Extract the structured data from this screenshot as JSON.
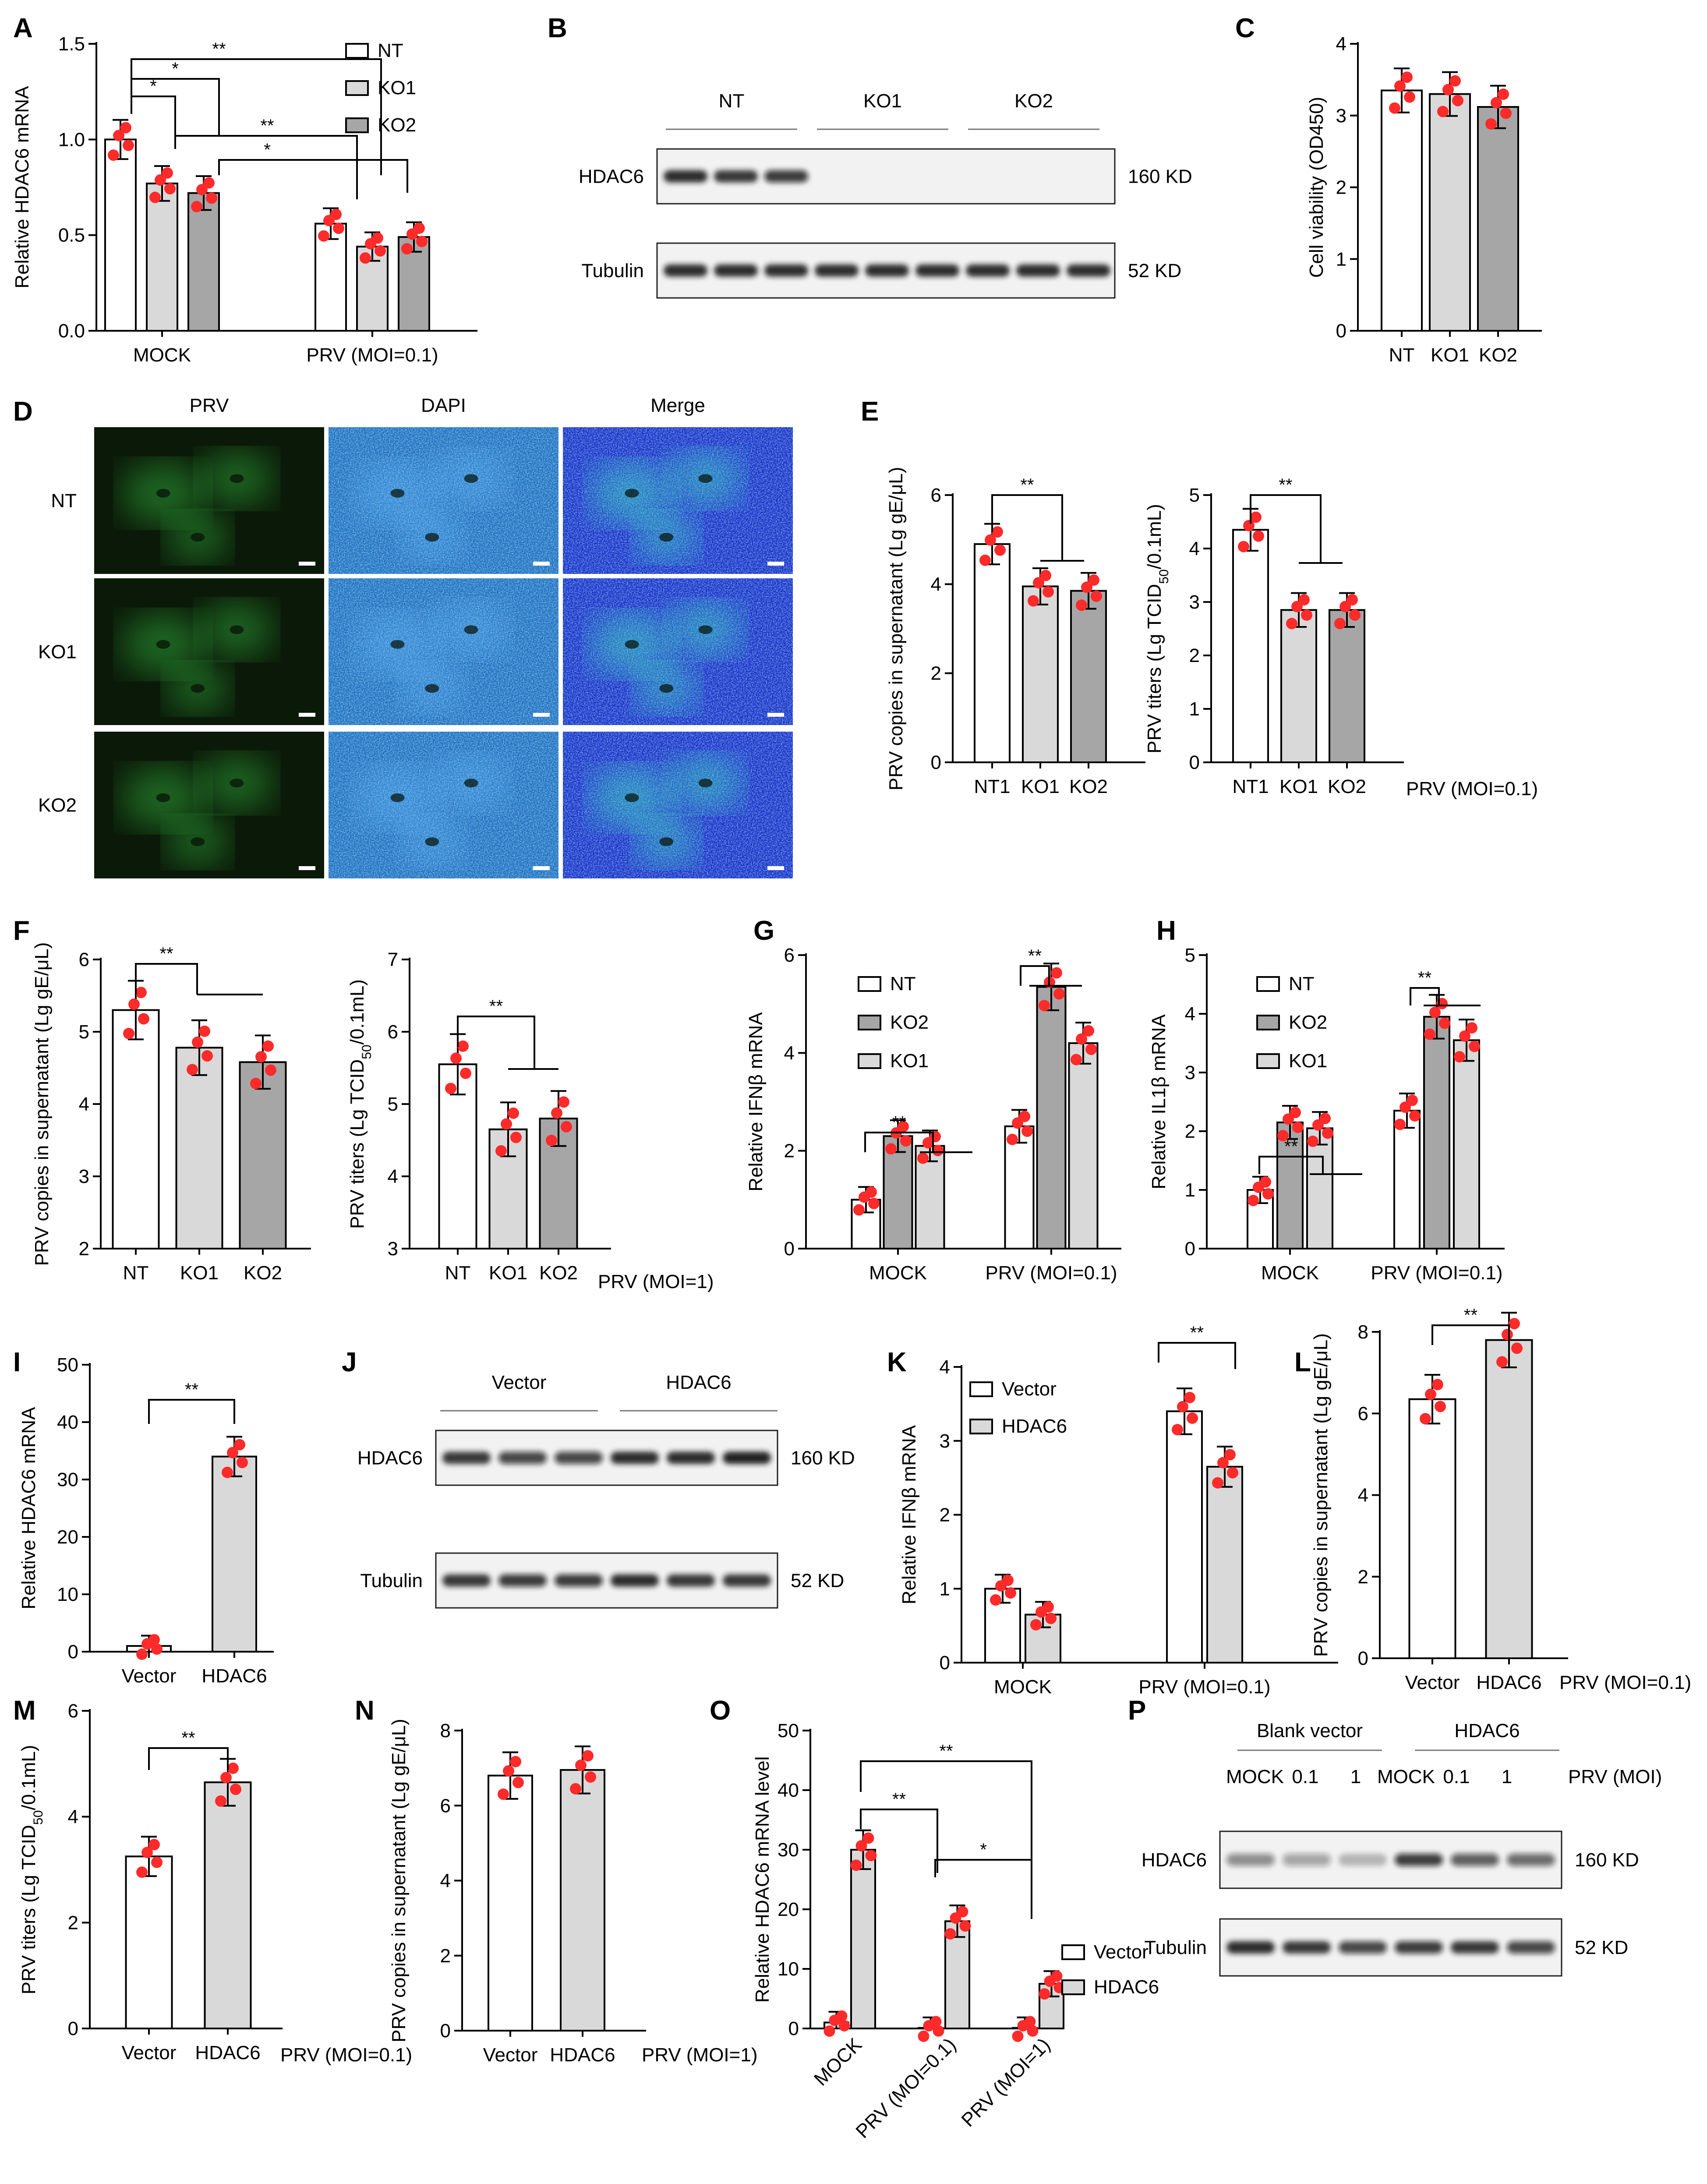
{
  "panel_letters": [
    "A",
    "B",
    "C",
    "D",
    "E",
    "F",
    "G",
    "H",
    "I",
    "J",
    "K",
    "L",
    "M",
    "N",
    "O",
    "P"
  ],
  "colors": {
    "nt": "#ffffff",
    "ko1": "#d9d9d9",
    "ko2": "#a6a6a6",
    "vector": "#ffffff",
    "hdac6": "#d9d9d9",
    "dot": "#ff2a2a",
    "prv_green": "#2fa83a",
    "dapi_blue": "#2c8fe0",
    "merge_blue": "#1530c8"
  },
  "chart_data": [
    {
      "id": "A",
      "type": "bar",
      "ylabel": "Relative HDAC6 mRNA",
      "ylim": [
        0,
        1.5
      ],
      "yticks": [
        "0.0",
        "0.5",
        "1.0",
        "1.5"
      ],
      "groups": [
        "MOCK",
        "PRV (MOI=0.1)"
      ],
      "series": [
        {
          "name": "NT",
          "values": [
            1.0,
            0.56
          ]
        },
        {
          "name": "KO1",
          "values": [
            0.77,
            0.44
          ]
        },
        {
          "name": "KO2",
          "values": [
            0.72,
            0.49
          ]
        }
      ],
      "significance": [
        "**",
        "*",
        "*",
        "**",
        "*"
      ]
    },
    {
      "id": "C",
      "type": "bar",
      "ylabel": "Cell viability (OD450)",
      "ylim": [
        0,
        4
      ],
      "yticks": [
        "0",
        "1",
        "2",
        "3",
        "4"
      ],
      "categories": [
        "NT",
        "KO1",
        "KO2"
      ],
      "values": [
        3.35,
        3.3,
        3.12
      ]
    },
    {
      "id": "E1",
      "type": "bar",
      "ylabel": "PRV copies in supernatant (Lg gE/μL)",
      "ylim": [
        0,
        6
      ],
      "yticks": [
        "0",
        "2",
        "4",
        "6"
      ],
      "categories": [
        "NT1",
        "KO1",
        "KO2"
      ],
      "values": [
        4.9,
        3.95,
        3.85
      ],
      "significance": [
        "**"
      ]
    },
    {
      "id": "E2",
      "type": "bar",
      "ylabel": "PRV titers (Lg TCID50/0.1mL)",
      "ylim": [
        0,
        5
      ],
      "yticks": [
        "0",
        "1",
        "2",
        "3",
        "4",
        "5"
      ],
      "categories": [
        "NT1",
        "KO1",
        "KO2"
      ],
      "values": [
        4.35,
        2.85,
        2.85
      ],
      "significance": [
        "**"
      ],
      "condition": "PRV (MOI=0.1)"
    },
    {
      "id": "F1",
      "type": "bar",
      "ylabel": "PRV copies in supernatant (Lg gE/μL)",
      "ylim": [
        2,
        6
      ],
      "yticks": [
        "2",
        "3",
        "4",
        "5",
        "6"
      ],
      "categories": [
        "NT",
        "KO1",
        "KO2"
      ],
      "values": [
        5.3,
        4.78,
        4.58
      ],
      "significance": [
        "**"
      ]
    },
    {
      "id": "F2",
      "type": "bar",
      "ylabel": "PRV titers (Lg TCID50/0.1mL)",
      "ylim": [
        3,
        7
      ],
      "yticks": [
        "3",
        "4",
        "5",
        "6",
        "7"
      ],
      "categories": [
        "NT",
        "KO1",
        "KO2"
      ],
      "values": [
        5.55,
        4.65,
        4.8
      ],
      "significance": [
        "**"
      ],
      "condition": "PRV (MOI=1)"
    },
    {
      "id": "G",
      "type": "bar",
      "ylabel": "Relative IFNβ mRNA",
      "ylim": [
        0,
        6
      ],
      "yticks": [
        "0",
        "2",
        "4",
        "6"
      ],
      "groups": [
        "MOCK",
        "PRV (MOI=0.1)"
      ],
      "series": [
        {
          "name": "NT",
          "values": [
            1.0,
            2.5
          ]
        },
        {
          "name": "KO2",
          "values": [
            2.3,
            5.35
          ]
        },
        {
          "name": "KO1",
          "values": [
            2.1,
            4.2
          ]
        }
      ],
      "significance": [
        "**",
        "**"
      ]
    },
    {
      "id": "H",
      "type": "bar",
      "ylabel": "Relative IL1β mRNA",
      "ylim": [
        0,
        5
      ],
      "yticks": [
        "0",
        "1",
        "2",
        "3",
        "4",
        "5"
      ],
      "groups": [
        "MOCK",
        "PRV (MOI=0.1)"
      ],
      "series": [
        {
          "name": "NT",
          "values": [
            1.0,
            2.35
          ]
        },
        {
          "name": "KO2",
          "values": [
            2.15,
            3.95
          ]
        },
        {
          "name": "KO1",
          "values": [
            2.05,
            3.55
          ]
        }
      ],
      "significance": [
        "**",
        "**"
      ]
    },
    {
      "id": "I",
      "type": "bar",
      "ylabel": "Relative HDAC6 mRNA",
      "ylim": [
        0,
        50
      ],
      "yticks": [
        "0",
        "10",
        "20",
        "30",
        "40",
        "50"
      ],
      "categories": [
        "Vector",
        "HDAC6"
      ],
      "values": [
        1.0,
        34
      ],
      "significance": [
        "**"
      ]
    },
    {
      "id": "K",
      "type": "bar",
      "ylabel": "Relative IFNβ mRNA",
      "ylim": [
        0,
        4
      ],
      "yticks": [
        "0",
        "1",
        "2",
        "3",
        "4"
      ],
      "groups": [
        "MOCK",
        "PRV (MOI=0.1)"
      ],
      "series": [
        {
          "name": "Vector",
          "values": [
            1.0,
            3.4
          ]
        },
        {
          "name": "HDAC6",
          "values": [
            0.65,
            2.65
          ]
        }
      ],
      "significance": [
        "**"
      ]
    },
    {
      "id": "L",
      "type": "bar",
      "ylabel": "PRV copies in supernatant (Lg gE/μL)",
      "ylim": [
        0,
        8
      ],
      "yticks": [
        "0",
        "2",
        "4",
        "6",
        "8"
      ],
      "categories": [
        "Vector",
        "HDAC6"
      ],
      "values": [
        6.35,
        7.8
      ],
      "significance": [
        "**"
      ],
      "condition": "PRV (MOI=0.1)"
    },
    {
      "id": "M",
      "type": "bar",
      "ylabel": "PRV titers (Lg TCID50/0.1mL)",
      "ylim": [
        0,
        6
      ],
      "yticks": [
        "0",
        "2",
        "4",
        "6"
      ],
      "categories": [
        "Vector",
        "HDAC6"
      ],
      "values": [
        3.25,
        4.65
      ],
      "significance": [
        "**"
      ],
      "condition": "PRV (MOI=0.1)"
    },
    {
      "id": "N",
      "type": "bar",
      "ylabel": "PRV copies in supernatant (Lg gE/μL)",
      "ylim": [
        0,
        8
      ],
      "yticks": [
        "0",
        "2",
        "4",
        "6",
        "8"
      ],
      "categories": [
        "Vector",
        "HDAC6"
      ],
      "values": [
        6.8,
        6.95
      ],
      "condition": "PRV (MOI=1)"
    },
    {
      "id": "O",
      "type": "bar",
      "ylabel": "Relative HDAC6 mRNA level",
      "ylim": [
        0,
        50
      ],
      "yticks": [
        "0",
        "10",
        "20",
        "30",
        "40",
        "50"
      ],
      "groups": [
        "MOCK",
        "PRV (MOI=0.1)",
        "PRV (MOI=1)"
      ],
      "series": [
        {
          "name": "Vector",
          "values": [
            1.0,
            0.1,
            0.1
          ]
        },
        {
          "name": "HDAC6",
          "values": [
            30,
            18,
            7.5
          ]
        }
      ],
      "significance": [
        "**",
        "**",
        "*"
      ]
    }
  ],
  "blots": {
    "B": {
      "lanes": [
        "NT",
        "KO1",
        "KO2"
      ],
      "rows": [
        {
          "name": "HDAC6",
          "size": "160 KD"
        },
        {
          "name": "Tubulin",
          "size": "52 KD"
        }
      ]
    },
    "J": {
      "lanes": [
        "Vector",
        "HDAC6"
      ],
      "rows": [
        {
          "name": "HDAC6",
          "size": "160 KD"
        },
        {
          "name": "Tubulin",
          "size": "52 KD"
        }
      ]
    },
    "P": {
      "groups": [
        "Blank vector",
        "HDAC6"
      ],
      "lanes": [
        "MOCK",
        "0.1",
        "1",
        "MOCK",
        "0.1",
        "1"
      ],
      "condition": "PRV (MOI)",
      "rows": [
        {
          "name": "HDAC6",
          "size": "160 KD"
        },
        {
          "name": "Tubulin",
          "size": "52 KD"
        }
      ]
    }
  },
  "microscopy": {
    "columns": [
      "PRV",
      "DAPI",
      "Merge"
    ],
    "rows": [
      "NT",
      "KO1",
      "KO2"
    ]
  }
}
